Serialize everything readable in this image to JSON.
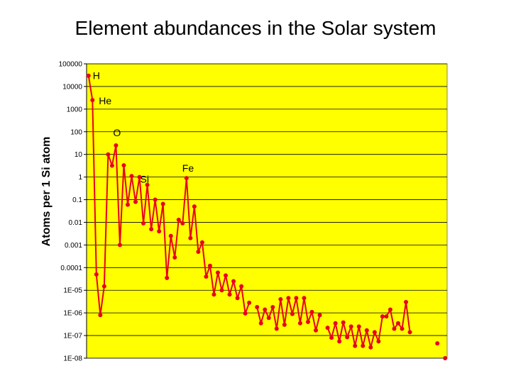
{
  "chart_data": {
    "type": "line",
    "title": "Element abundances in the Solar system",
    "xlabel": "",
    "ylabel": "Atoms per 1 Si atom",
    "y_scale": "log",
    "ylim": [
      1e-08,
      100000
    ],
    "y_ticks": [
      "100000",
      "10000",
      "1000",
      "100",
      "10",
      "1",
      "0.1",
      "0.01",
      "0.001",
      "0.0001",
      "1E-05",
      "1E-06",
      "1E-07",
      "1E-08"
    ],
    "grid": true,
    "legend": "none",
    "colors": {
      "plot_background": "#ffff00",
      "series": "#e8001c",
      "grid": "#000000"
    },
    "annotations": [
      {
        "text": "H",
        "z": 1
      },
      {
        "text": "He",
        "z": 2
      },
      {
        "text": "O",
        "z": 8
      },
      {
        "text": "Si",
        "z": 14
      },
      {
        "text": "Fe",
        "z": 26
      }
    ],
    "series": [
      {
        "points": [
          [
            1,
            30000
          ],
          [
            2,
            2500
          ],
          [
            3,
            5e-05
          ],
          [
            4,
            8e-07
          ],
          [
            5,
            1.5e-05
          ],
          [
            6,
            10
          ],
          [
            7,
            3.2
          ],
          [
            8,
            25
          ],
          [
            9,
            0.001
          ],
          [
            10,
            3.3
          ],
          [
            11,
            0.06
          ],
          [
            12,
            1.1
          ],
          [
            13,
            0.08
          ],
          [
            14,
            1
          ],
          [
            15,
            0.009
          ],
          [
            16,
            0.45
          ],
          [
            17,
            0.005
          ],
          [
            18,
            0.1
          ],
          [
            19,
            0.004
          ],
          [
            20,
            0.065
          ],
          [
            21,
            3.5e-05
          ],
          [
            22,
            0.0025
          ],
          [
            23,
            0.00028
          ],
          [
            24,
            0.013
          ],
          [
            25,
            0.009
          ],
          [
            26,
            0.9
          ],
          [
            27,
            0.002
          ],
          [
            28,
            0.05
          ],
          [
            29,
            0.0005
          ],
          [
            30,
            0.0013
          ],
          [
            31,
            4e-05
          ],
          [
            32,
            0.00012
          ],
          [
            33,
            6.5e-06
          ],
          [
            34,
            6e-05
          ],
          [
            35,
            1e-05
          ],
          [
            36,
            4.5e-05
          ],
          [
            37,
            6.5e-06
          ],
          [
            38,
            2.5e-05
          ],
          [
            39,
            4.5e-06
          ],
          [
            40,
            1.5e-05
          ],
          [
            41,
            9.5e-07
          ],
          [
            42,
            2.8e-06
          ],
          [
            44,
            1.8e-06
          ],
          [
            45,
            3.5e-07
          ],
          [
            46,
            1.4e-06
          ],
          [
            47,
            6e-07
          ],
          [
            48,
            1.8e-06
          ],
          [
            49,
            2e-07
          ],
          [
            50,
            4e-06
          ],
          [
            51,
            3e-07
          ],
          [
            52,
            4.5e-06
          ],
          [
            53,
            9e-07
          ],
          [
            54,
            4.5e-06
          ],
          [
            55,
            3.5e-07
          ],
          [
            56,
            4.5e-06
          ],
          [
            57,
            4e-07
          ],
          [
            58,
            1.1e-06
          ],
          [
            59,
            1.7e-07
          ],
          [
            60,
            8e-07
          ],
          [
            62,
            2.2e-07
          ],
          [
            63,
            8e-08
          ],
          [
            64,
            3.5e-07
          ],
          [
            65,
            5.5e-08
          ],
          [
            66,
            3.8e-07
          ],
          [
            67,
            8.5e-08
          ],
          [
            68,
            2.5e-07
          ],
          [
            69,
            3.5e-08
          ],
          [
            70,
            2.5e-07
          ],
          [
            71,
            3.5e-08
          ],
          [
            72,
            1.7e-07
          ],
          [
            73,
            3e-08
          ],
          [
            74,
            1.4e-07
          ],
          [
            75,
            5.5e-08
          ],
          [
            76,
            7e-07
          ],
          [
            77,
            7e-07
          ],
          [
            78,
            1.4e-06
          ],
          [
            79,
            2e-07
          ],
          [
            80,
            3.5e-07
          ],
          [
            81,
            2e-07
          ],
          [
            82,
            3e-06
          ],
          [
            83,
            1.4e-07
          ],
          [
            90,
            4.5e-08
          ],
          [
            92,
            1e-08
          ]
        ]
      }
    ]
  }
}
